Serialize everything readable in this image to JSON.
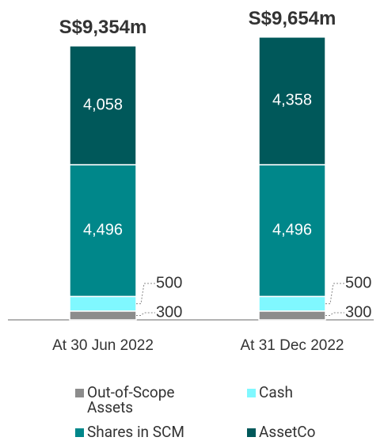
{
  "chart_data": {
    "type": "stacked-bar",
    "categories": [
      "At 30 Jun 2022",
      "At 31 Dec 2022"
    ],
    "total_labels": [
      "S$9,354m",
      "S$9,654m"
    ],
    "series": [
      {
        "name": "Out-of-Scope Assets",
        "color": "#8c8c8c",
        "values": [
          300,
          300
        ],
        "value_labels": [
          "300",
          "300"
        ]
      },
      {
        "name": "Cash",
        "color": "#80f8ff",
        "values": [
          500,
          500
        ],
        "value_labels": [
          "500",
          "500"
        ]
      },
      {
        "name": "Shares in SCM",
        "color": "#00878a",
        "values": [
          4496,
          4496
        ],
        "value_labels": [
          "4,496",
          "4,496"
        ]
      },
      {
        "name": "AssetCo",
        "color": "#00585a",
        "values": [
          4058,
          4358
        ],
        "value_labels": [
          "4,058",
          "4,358"
        ]
      }
    ]
  }
}
